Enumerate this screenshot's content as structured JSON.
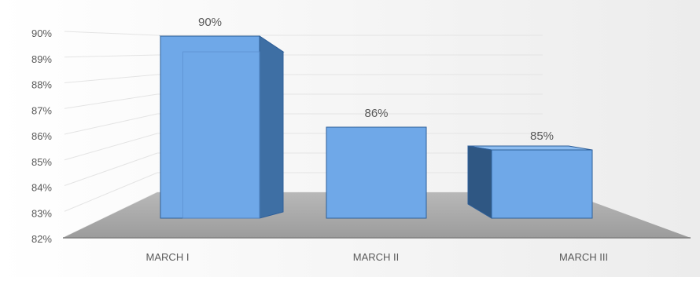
{
  "chart_data": {
    "type": "bar",
    "categories": [
      "MARCH I",
      "MARCH II",
      "MARCH III"
    ],
    "values": [
      90,
      86,
      85
    ],
    "data_labels": [
      "90%",
      "86%",
      "85%"
    ],
    "y_ticks": [
      "82%",
      "83%",
      "84%",
      "85%",
      "86%",
      "87%",
      "88%",
      "89%",
      "90%"
    ],
    "ylim": [
      82,
      90
    ],
    "style": "3d-column",
    "grid": true,
    "legend": "none",
    "colors": {
      "bar_front": "#6FA8E8",
      "bar_side": "#3E6FA4",
      "bar_top": "#8CBCF0",
      "bar_edge": "#2E5F99",
      "floor": "#A9A9A9",
      "gridline": "#E4E4E4",
      "text": "#595959"
    }
  }
}
